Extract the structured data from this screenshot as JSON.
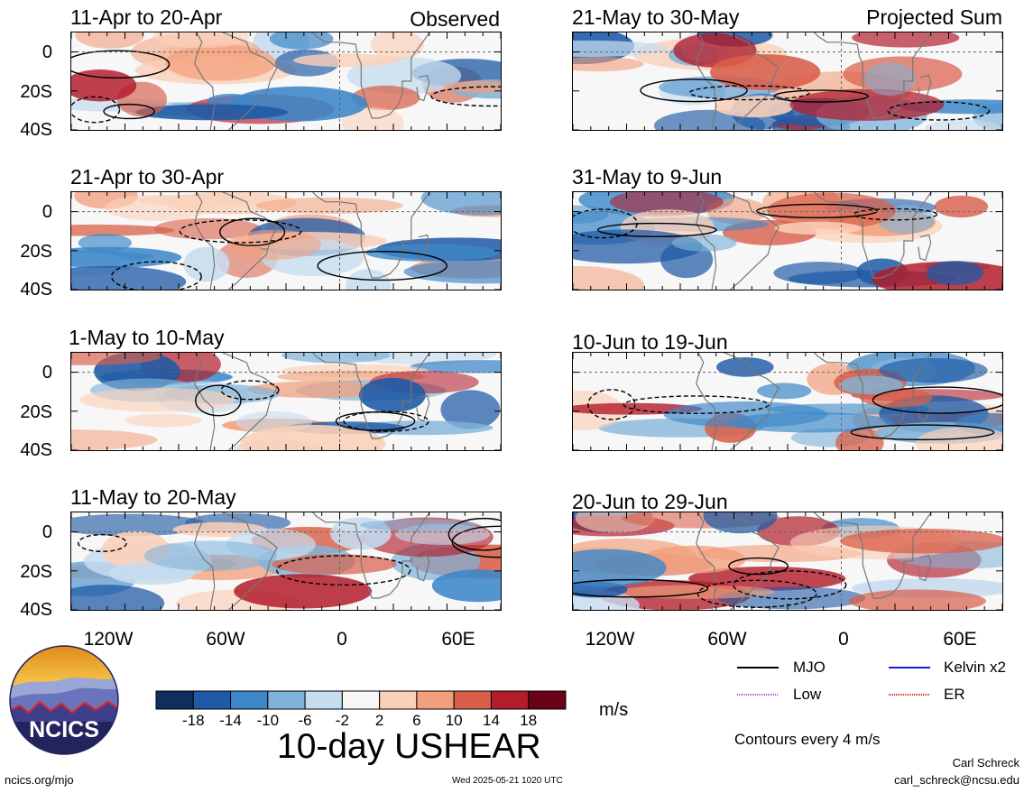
{
  "panels": [
    {
      "title": "11-Apr to 20-Apr",
      "tag": "Observed"
    },
    {
      "title": "21-Apr to 30-Apr",
      "tag": ""
    },
    {
      "title": "1-May to 10-May",
      "tag": ""
    },
    {
      "title": "11-May to 20-May",
      "tag": ""
    },
    {
      "title": "21-May to 30-May",
      "tag": "Projected Sum"
    },
    {
      "title": "31-May to 9-Jun",
      "tag": ""
    },
    {
      "title": "10-Jun to 19-Jun",
      "tag": ""
    },
    {
      "title": "20-Jun to 29-Jun",
      "tag": ""
    }
  ],
  "axes": {
    "lat_labels": [
      "0",
      "20S",
      "40S"
    ],
    "lon_labels": [
      "120W",
      "60W",
      "0",
      "60E"
    ]
  },
  "colorbar": {
    "labels": [
      "-18",
      "-14",
      "-10",
      "-6",
      "-2",
      "2",
      "6",
      "10",
      "14",
      "18"
    ],
    "colors": [
      "#0d2e5e",
      "#1f5aa6",
      "#3c87c8",
      "#7fb3da",
      "#c6dcef",
      "#f7f7f7",
      "#fbd0b9",
      "#f2a07c",
      "#d95f4a",
      "#b21c2b",
      "#6b0019"
    ],
    "units": "m/s"
  },
  "title": "10-day USHEAR",
  "legend": {
    "mjo": "MJO",
    "kelvin": "Kelvin x2",
    "low": "Low",
    "er": "ER",
    "colors": {
      "mjo": "#000000",
      "kelvin": "#1a1ad6",
      "low": "#b44de0",
      "er": "#d92020"
    }
  },
  "contours_note": "Contours every 4 m/s",
  "logo": {
    "text": "NCICS"
  },
  "footer": {
    "url": "ncics.org/mjo",
    "timestamp": "Wed 2025-05-21 1020 UTC",
    "author": "Carl Schreck",
    "email": "carl_schreck@ncsu.edu"
  }
}
